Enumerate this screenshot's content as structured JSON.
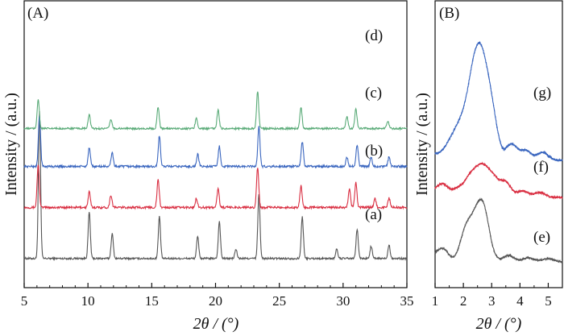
{
  "chart_data": [
    {
      "panel": "(A)",
      "type": "line",
      "xlabel": "2θ / (°)",
      "ylabel": "Intensity / (a.u.)",
      "xlim": [
        5,
        35
      ],
      "xticks": [
        5,
        10,
        15,
        20,
        25,
        30,
        35
      ],
      "grid": false,
      "series": [
        {
          "name": "(a)",
          "color": "#555555",
          "baseline": 1.0,
          "noise": 0.06,
          "peaks": [
            [
              6.2,
              9.5
            ],
            [
              10.1,
              3.0
            ],
            [
              11.9,
              1.6
            ],
            [
              15.6,
              2.7
            ],
            [
              18.6,
              1.4
            ],
            [
              20.3,
              2.4
            ],
            [
              21.6,
              0.6
            ],
            [
              23.4,
              4.2
            ],
            [
              26.8,
              2.7
            ],
            [
              29.5,
              0.6
            ],
            [
              31.1,
              1.9
            ],
            [
              32.2,
              0.8
            ],
            [
              33.6,
              0.9
            ]
          ]
        },
        {
          "name": "(b)",
          "color": "#d92f42",
          "baseline": 4.3,
          "noise": 0.07,
          "peaks": [
            [
              6.1,
              2.8
            ],
            [
              10.1,
              1.0
            ],
            [
              11.8,
              0.8
            ],
            [
              15.5,
              1.8
            ],
            [
              18.5,
              0.6
            ],
            [
              20.2,
              1.2
            ],
            [
              23.3,
              2.6
            ],
            [
              26.7,
              1.4
            ],
            [
              30.5,
              1.2
            ],
            [
              31.0,
              1.6
            ],
            [
              32.5,
              0.6
            ],
            [
              33.6,
              0.6
            ]
          ]
        },
        {
          "name": "(c)",
          "color": "#3a66bf",
          "baseline": 6.95,
          "noise": 0.07,
          "peaks": [
            [
              6.2,
              3.3
            ],
            [
              10.1,
              1.2
            ],
            [
              11.9,
              0.9
            ],
            [
              15.6,
              2.0
            ],
            [
              18.6,
              0.8
            ],
            [
              20.3,
              1.3
            ],
            [
              23.4,
              2.6
            ],
            [
              26.8,
              1.6
            ],
            [
              30.3,
              0.6
            ],
            [
              31.1,
              1.4
            ],
            [
              32.2,
              0.6
            ],
            [
              33.6,
              0.6
            ]
          ]
        },
        {
          "name": "(d)",
          "color": "#5aab78",
          "baseline": 9.4,
          "noise": 0.06,
          "peaks": [
            [
              6.1,
              1.9
            ],
            [
              10.1,
              0.9
            ],
            [
              11.8,
              0.6
            ],
            [
              15.5,
              1.4
            ],
            [
              18.5,
              0.7
            ],
            [
              20.2,
              1.2
            ],
            [
              23.3,
              2.4
            ],
            [
              26.7,
              1.4
            ],
            [
              30.3,
              0.8
            ],
            [
              31.0,
              1.3
            ],
            [
              33.5,
              0.5
            ]
          ]
        }
      ],
      "annotations": [
        "(a)",
        "(b)",
        "(c)",
        "(d)"
      ]
    },
    {
      "panel": "(B)",
      "type": "line",
      "xlabel": "2θ / (°)",
      "xlim": [
        1,
        5.5
      ],
      "xticks": [
        1,
        2,
        3,
        4,
        5
      ],
      "grid": false,
      "series": [
        {
          "name": "(e)",
          "color": "#555555",
          "baseline": 1.0,
          "noise": 0.05,
          "peaks": [
            [
              1.3,
              0.6
            ],
            [
              2.05,
              1.3
            ],
            [
              2.5,
              3.0
            ],
            [
              2.75,
              1.4
            ],
            [
              3.6,
              0.4
            ],
            [
              4.3,
              0.25
            ],
            [
              5.0,
              0.2
            ]
          ]
        },
        {
          "name": "(f)",
          "color": "#d92f42",
          "baseline": 5.0,
          "noise": 0.06,
          "peaks": [
            [
              1.3,
              0.6
            ],
            [
              1.8,
              0.5
            ],
            [
              2.2,
              0.8
            ],
            [
              2.65,
              2.0
            ],
            [
              3.1,
              0.7
            ],
            [
              3.5,
              0.9
            ],
            [
              4.1,
              0.4
            ],
            [
              4.7,
              0.3
            ]
          ]
        },
        {
          "name": "(g)",
          "color": "#3a66bf",
          "baseline": 7.3,
          "noise": 0.06,
          "peaks": [
            [
              1.5,
              0.8
            ],
            [
              1.8,
              1.1
            ],
            [
              2.2,
              2.0
            ],
            [
              2.45,
              2.7
            ],
            [
              2.7,
              4.3
            ],
            [
              3.05,
              1.2
            ],
            [
              3.7,
              1.0
            ],
            [
              4.2,
              0.6
            ],
            [
              4.8,
              0.5
            ]
          ]
        }
      ],
      "annotations": [
        "(e)",
        "(f)",
        "(g)"
      ]
    }
  ]
}
